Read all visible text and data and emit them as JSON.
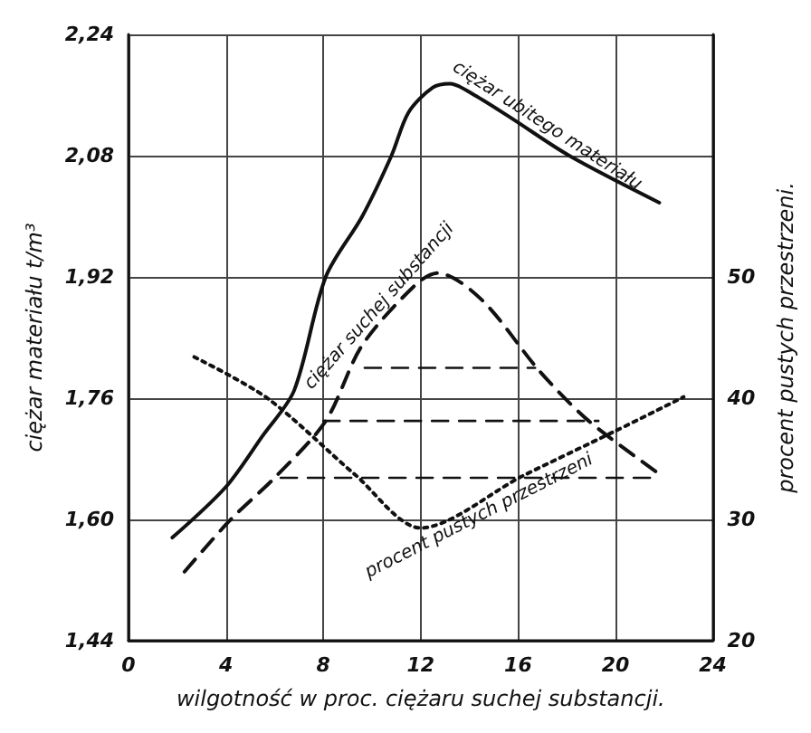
{
  "chart_data": {
    "type": "line",
    "xlabel": "wilgotność w proc. ciężaru suchej substancji.",
    "ylabel": "ciężar materiału t/m³",
    "y2label": "procent pustych przestrzeni.",
    "xlim": [
      0,
      24
    ],
    "xticks": [
      0,
      4,
      8,
      12,
      16,
      20,
      24
    ],
    "ylim": [
      1.44,
      2.24
    ],
    "yticks": [
      {
        "value": 1.44,
        "label": "1,44"
      },
      {
        "value": 1.6,
        "label": "1,60"
      },
      {
        "value": 1.76,
        "label": "1,76"
      },
      {
        "value": 1.92,
        "label": "1,92"
      },
      {
        "value": 2.08,
        "label": "2,08"
      },
      {
        "value": 2.24,
        "label": "2,24"
      }
    ],
    "y2lim": [
      20,
      70
    ],
    "y2ticks": [
      20,
      30,
      40,
      50
    ],
    "grid": true,
    "legend": false,
    "marker": "none",
    "series": [
      {
        "name": "ciężar ubitego materiału",
        "color": "#111111",
        "line_style": "solid",
        "x": [
          1.8,
          4.0,
          5.5,
          6.8,
          8.1,
          9.6,
          10.8,
          11.5,
          12.5,
          13.2,
          14.2,
          15.7,
          18.1,
          21.8
        ],
        "values": [
          1.576,
          1.643,
          1.71,
          1.77,
          1.92,
          2.0,
          2.08,
          2.137,
          2.17,
          2.175,
          2.16,
          2.13,
          2.08,
          2.018
        ]
      },
      {
        "name": "ciężar suchej substancji",
        "color": "#111111",
        "line_style": "dashed",
        "x": [
          2.3,
          4.2,
          6.0,
          8.1,
          9.6,
          11.8,
          12.7,
          14.5,
          16.9,
          18.9,
          21.8
        ],
        "values": [
          1.531,
          1.6,
          1.655,
          1.73,
          1.83,
          1.91,
          1.925,
          1.89,
          1.795,
          1.73,
          1.66
        ]
      },
      {
        "name": "procent pustych przestrzeni",
        "color": "#111111",
        "line_style": "dotted",
        "axis": "y2",
        "x": [
          2.7,
          5.7,
          9.3,
          12.0,
          16.2,
          20.0,
          22.8
        ],
        "values": [
          43.4,
          40.0,
          33.7,
          29.3,
          33.6,
          37.3,
          40.1
        ]
      },
      {
        "color": "#111111",
        "line_style": "dashed",
        "x": [
          9.7,
          16.7
        ],
        "values": [
          1.8,
          1.8
        ]
      },
      {
        "color": "#111111",
        "line_style": "dashed",
        "x": [
          8.0,
          19.3
        ],
        "values": [
          1.73,
          1.73
        ]
      },
      {
        "color": "#111111",
        "line_style": "dashed",
        "x": [
          6.25,
          21.8
        ],
        "values": [
          1.655,
          1.655
        ]
      }
    ]
  }
}
